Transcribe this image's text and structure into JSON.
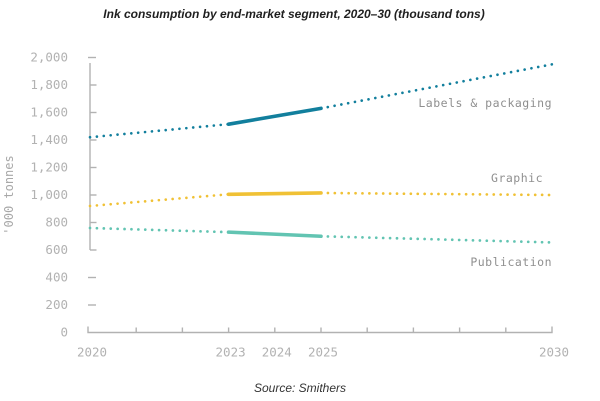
{
  "chart_data": {
    "type": "line",
    "title": "Ink consumption by end-market segment, 2020–30 (thousand tons)",
    "source": "Source: Smithers",
    "ylabel": "'000 tonnes",
    "x": [
      2020,
      2023,
      2025,
      2030
    ],
    "x_axis": {
      "min": 2020,
      "max": 2030,
      "labeled_ticks": [
        "2020",
        "2023",
        "2024",
        "2025",
        "2030"
      ],
      "labeled_tick_years": [
        2020,
        2023,
        2024,
        2025,
        2030
      ],
      "minor_tick_years": [
        2021,
        2022,
        2023,
        2024,
        2025,
        2026,
        2027,
        2028,
        2029,
        2030
      ]
    },
    "y_axis": {
      "min": 0,
      "max": 2000,
      "step": 200,
      "tick_labels": [
        "0",
        "200",
        "400",
        "600",
        "800",
        "1,000",
        "1,200",
        "1,400",
        "1,600",
        "1,800",
        "2,000"
      ],
      "tick_values": [
        0,
        200,
        400,
        600,
        800,
        1000,
        1200,
        1400,
        1600,
        1800,
        2000
      ],
      "detached_tick_values": [
        2000,
        400,
        200
      ],
      "line_tick_values": [
        1800,
        1600,
        1400,
        1200,
        1000,
        800,
        600
      ]
    },
    "style": {
      "solid_segment_years": [
        2023,
        2025
      ],
      "dotted_segments": [
        [
          2020,
          2023
        ],
        [
          2025,
          2030
        ]
      ],
      "axis_color": "#b2b2b2",
      "tick_label_color": "#b2b2b2",
      "series_label_color": "#8f8f8f",
      "grid": false
    },
    "series": [
      {
        "name": "Labels & packaging",
        "color": "#127f9d",
        "values": [
          1420,
          1515,
          1630,
          1950
        ]
      },
      {
        "name": "Graphic",
        "color": "#f0c135",
        "values": [
          920,
          1005,
          1015,
          1000
        ]
      },
      {
        "name": "Publication",
        "color": "#62c4b2",
        "values": [
          760,
          730,
          700,
          655
        ]
      }
    ]
  }
}
